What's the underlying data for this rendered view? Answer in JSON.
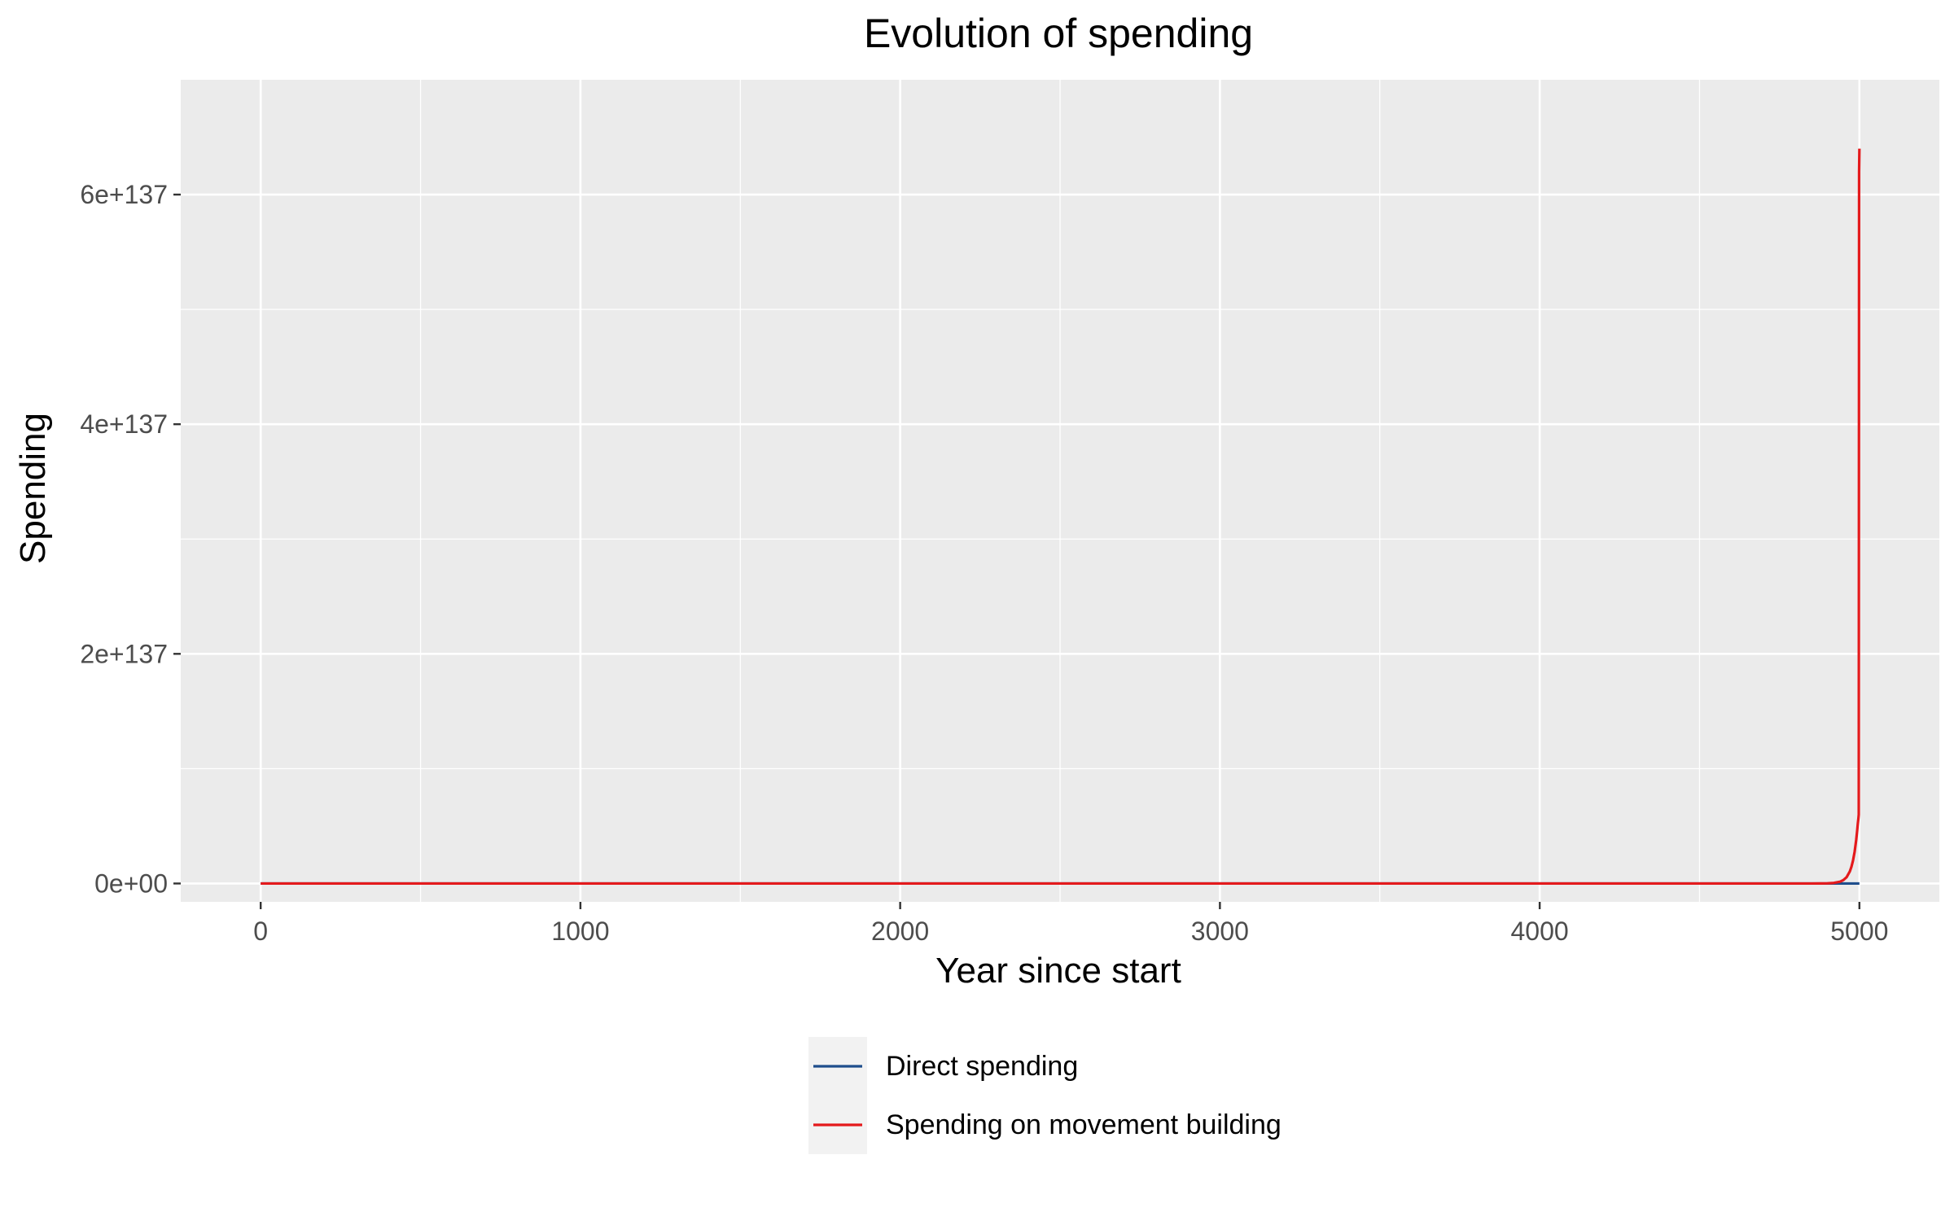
{
  "chart_data": {
    "type": "line",
    "title": "Evolution of spending",
    "xlabel": "Year since start",
    "ylabel": "Spending",
    "xlim": [
      -250,
      5250
    ],
    "ylim": [
      -1.6e+136,
      7e+137
    ],
    "x_ticks": [
      0,
      1000,
      2000,
      3000,
      4000,
      5000
    ],
    "x_tick_labels": [
      "0",
      "1000",
      "2000",
      "3000",
      "4000",
      "5000"
    ],
    "x_minor_ticks": [
      500,
      1500,
      2500,
      3500,
      4500
    ],
    "y_ticks": [
      0,
      2e+137,
      4e+137,
      6e+137
    ],
    "y_tick_labels": [
      "0e+00",
      "2e+137",
      "4e+137",
      "6e+137"
    ],
    "y_minor_ticks": [
      1e+137,
      3e+137,
      5e+137
    ],
    "grid": true,
    "legend_position": "bottom",
    "colors": {
      "panel_background": "#ebebeb",
      "grid": "#ffffff",
      "legend_key_background": "#f2f2f2"
    },
    "series": [
      {
        "name": "Direct spending",
        "color": "#1f4e8c",
        "x": [
          0,
          1000,
          2000,
          3000,
          4000,
          4900,
          5000
        ],
        "y": [
          0,
          0,
          0,
          0,
          0,
          0,
          0
        ]
      },
      {
        "name": "Spending on movement building",
        "color": "#e41a1c",
        "x": [
          0,
          1000,
          2000,
          3000,
          4000,
          4800,
          4850,
          4880,
          4900,
          4920,
          4940,
          4950,
          4960,
          4970,
          4975,
          4980,
          4985,
          4990,
          4993,
          4995,
          4997,
          4998,
          4999,
          5000
        ],
        "y": [
          0,
          0,
          0,
          0,
          0,
          1e+132,
          1e+133,
          5e+133,
          1.5e+134,
          5e+134,
          1.6e+135,
          3e+135,
          5.5e+135,
          1.05e+136,
          1.45e+136,
          2e+136,
          2.75e+136,
          3.8e+136,
          4.6e+136,
          5.2e+136,
          5.7e+136,
          6e+136,
          6.2e+137,
          6.4e+137
        ]
      }
    ]
  }
}
